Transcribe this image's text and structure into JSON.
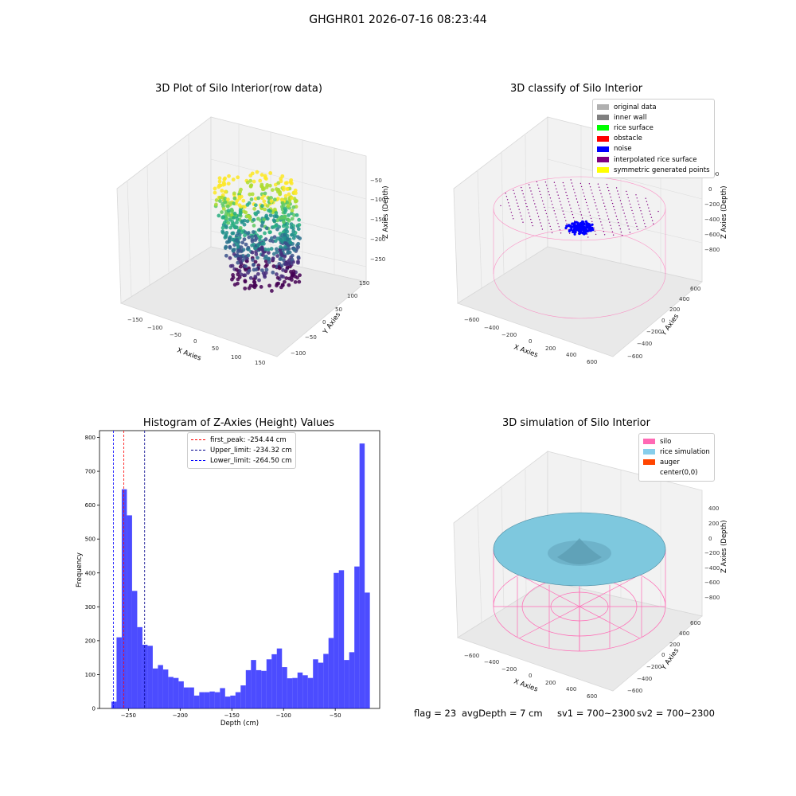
{
  "suptitle": "GHGHR01 2026-07-16 08:23:44",
  "panels": {
    "raw": {
      "title": "3D Plot of Silo Interior(row data)",
      "xlabel": "X Axies",
      "ylabel": "Y Axies",
      "zlabel": "Z Axies (Depth)",
      "xticks": [
        "−150",
        "−100",
        "−50",
        "0",
        "50",
        "100",
        "150"
      ],
      "yticks": [
        "−100",
        "−50",
        "0",
        "50",
        "100",
        "150"
      ],
      "zticks": [
        "−50",
        "−100",
        "−150",
        "−200",
        "−250"
      ]
    },
    "classify": {
      "title": "3D classify of Silo Interior",
      "xlabel": "X Axies",
      "ylabel": "Y Axies",
      "zlabel": "Z Axies (Depth)",
      "xticks": [
        "−600",
        "−400",
        "−200",
        "0",
        "200",
        "400",
        "600"
      ],
      "yticks": [
        "−600",
        "−400",
        "−200",
        "0",
        "200",
        "400",
        "600"
      ],
      "zticks": [
        "200",
        "0",
        "−200",
        "−400",
        "−600",
        "−800"
      ],
      "legend": [
        {
          "label": "original data",
          "color": "#b0b0b0"
        },
        {
          "label": "inner wall",
          "color": "#808080"
        },
        {
          "label": "rice surface",
          "color": "#00ff00"
        },
        {
          "label": "obstacle",
          "color": "#ff0000"
        },
        {
          "label": "noise",
          "color": "#0000ff"
        },
        {
          "label": "interpolated rice surface",
          "color": "#800080"
        },
        {
          "label": "symmetric generated points",
          "color": "#ffff00"
        }
      ]
    },
    "simulation": {
      "title": "3D simulation of Silo Interior",
      "xlabel": "X Axies",
      "ylabel": "Y Axies",
      "zlabel": "Z Axies (Depth)",
      "xticks": [
        "−600",
        "−400",
        "−200",
        "0",
        "200",
        "400",
        "600"
      ],
      "yticks": [
        "−600",
        "−400",
        "−200",
        "0",
        "200",
        "400",
        "600"
      ],
      "zticks": [
        "400",
        "200",
        "0",
        "−200",
        "−400",
        "−600",
        "−800"
      ],
      "legend": [
        {
          "label": "silo",
          "color": "#ff69b4"
        },
        {
          "label": "rice simulation",
          "color": "#87ceeb"
        },
        {
          "label": "auger",
          "color": "#ff4500"
        },
        {
          "label": "center(0,0)",
          "color": "#ffffff"
        }
      ]
    }
  },
  "footer": {
    "flag": "flag = 23",
    "avg_depth": "avgDepth = 7 cm",
    "sv1": "sv1 = 700~2300",
    "sv2": "sv2 = 700~2300"
  },
  "chart_data": {
    "type": "bar",
    "title": "Histogram of Z-Axies (Height) Values",
    "xlabel": "Depth (cm)",
    "ylabel": "Frequency",
    "xlim": [
      -278,
      -7
    ],
    "ylim": [
      0,
      820
    ],
    "xticks": [
      -250,
      -200,
      -150,
      -100,
      -50
    ],
    "yticks": [
      0,
      100,
      200,
      300,
      400,
      500,
      600,
      700,
      800
    ],
    "bin_width": 5,
    "bin_start": -266.5,
    "values": [
      20,
      210,
      647,
      570,
      347,
      240,
      188,
      185,
      118,
      128,
      115,
      93,
      90,
      80,
      62,
      62,
      38,
      48,
      48,
      50,
      48,
      60,
      35,
      38,
      48,
      68,
      113,
      143,
      113,
      111,
      145,
      160,
      177,
      122,
      89,
      90,
      106,
      98,
      90,
      145,
      135,
      161,
      208,
      400,
      408,
      143,
      166,
      419,
      782,
      342
    ],
    "series": [
      {
        "name": "Depth",
        "color": "#0000ff"
      }
    ],
    "vlines": [
      {
        "label": "first_peak: -254.44 cm",
        "x": -254.44,
        "color": "#ff0000"
      },
      {
        "label": "Upper_limit: -234.32 cm",
        "x": -234.32,
        "color": "#00008b"
      },
      {
        "label": "Lower_limit: -264.50 cm",
        "x": -264.5,
        "color": "#0000ff"
      }
    ],
    "legend_position": "upper center"
  }
}
